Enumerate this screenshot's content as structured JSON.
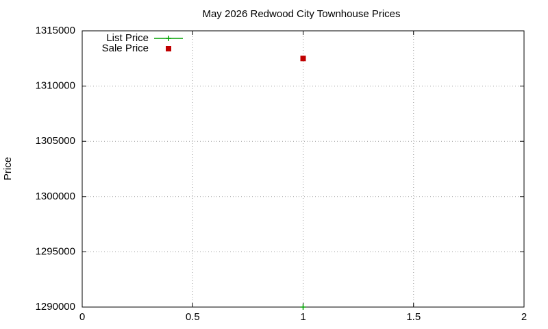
{
  "chart_data": {
    "type": "scatter",
    "title": "May 2026 Redwood City Townhouse Prices",
    "y_label": "Price",
    "xlim": [
      0,
      2
    ],
    "xticks": [
      0,
      0.5,
      1,
      1.5,
      2
    ],
    "ylim": [
      1290000,
      1315000
    ],
    "yticks": [
      1290000,
      1295000,
      1300000,
      1305000,
      1310000,
      1315000
    ],
    "grid": true,
    "legend": "top-left",
    "series": [
      {
        "name": "List Price",
        "color": "#00a000",
        "marker": "plus",
        "line": true,
        "x": [
          1
        ],
        "values": [
          1290000
        ]
      },
      {
        "name": "Sale Price",
        "color": "#c00000",
        "marker": "square",
        "line": false,
        "x": [
          1
        ],
        "values": [
          1312500
        ]
      }
    ]
  }
}
